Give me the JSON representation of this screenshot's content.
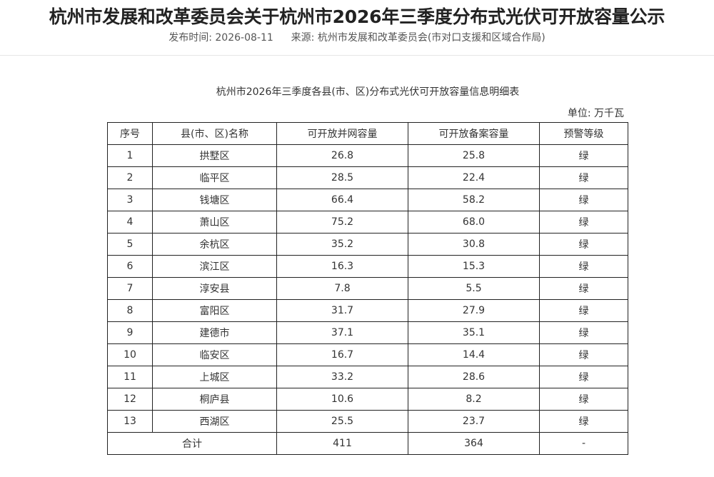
{
  "article": {
    "title": "杭州市发展和改革委员会关于杭州市2026年三季度分布式光伏可开放容量公示",
    "publish_label": "发布时间:",
    "publish_date": "2026-08-11",
    "source_label": "来源:",
    "source": "杭州市发展和改革委员会(市对口支援和区域合作局)"
  },
  "table": {
    "caption": "杭州市2026年三季度各县(市、区)分布式光伏可开放容量信息明细表",
    "unit": "单位:  万千瓦",
    "headers": [
      "序号",
      "县(市、区)名称",
      "可开放并网容量",
      "可开放备案容量",
      "预警等级"
    ],
    "rows": [
      [
        "1",
        "拱墅区",
        "26.8",
        "25.8",
        "绿"
      ],
      [
        "2",
        "临平区",
        "28.5",
        "22.4",
        "绿"
      ],
      [
        "3",
        "钱塘区",
        "66.4",
        "58.2",
        "绿"
      ],
      [
        "4",
        "萧山区",
        "75.2",
        "68.0",
        "绿"
      ],
      [
        "5",
        "余杭区",
        "35.2",
        "30.8",
        "绿"
      ],
      [
        "6",
        "滨江区",
        "16.3",
        "15.3",
        "绿"
      ],
      [
        "7",
        "淳安县",
        "7.8",
        "5.5",
        "绿"
      ],
      [
        "8",
        "富阳区",
        "31.7",
        "27.9",
        "绿"
      ],
      [
        "9",
        "建德市",
        "37.1",
        "35.1",
        "绿"
      ],
      [
        "10",
        "临安区",
        "16.7",
        "14.4",
        "绿"
      ],
      [
        "11",
        "上城区",
        "33.2",
        "28.6",
        "绿"
      ],
      [
        "12",
        "桐庐县",
        "10.6",
        "8.2",
        "绿"
      ],
      [
        "13",
        "西湖区",
        "25.5",
        "23.7",
        "绿"
      ]
    ],
    "total": {
      "label": "合计",
      "grid": "411",
      "filing": "364",
      "level": "-"
    }
  }
}
